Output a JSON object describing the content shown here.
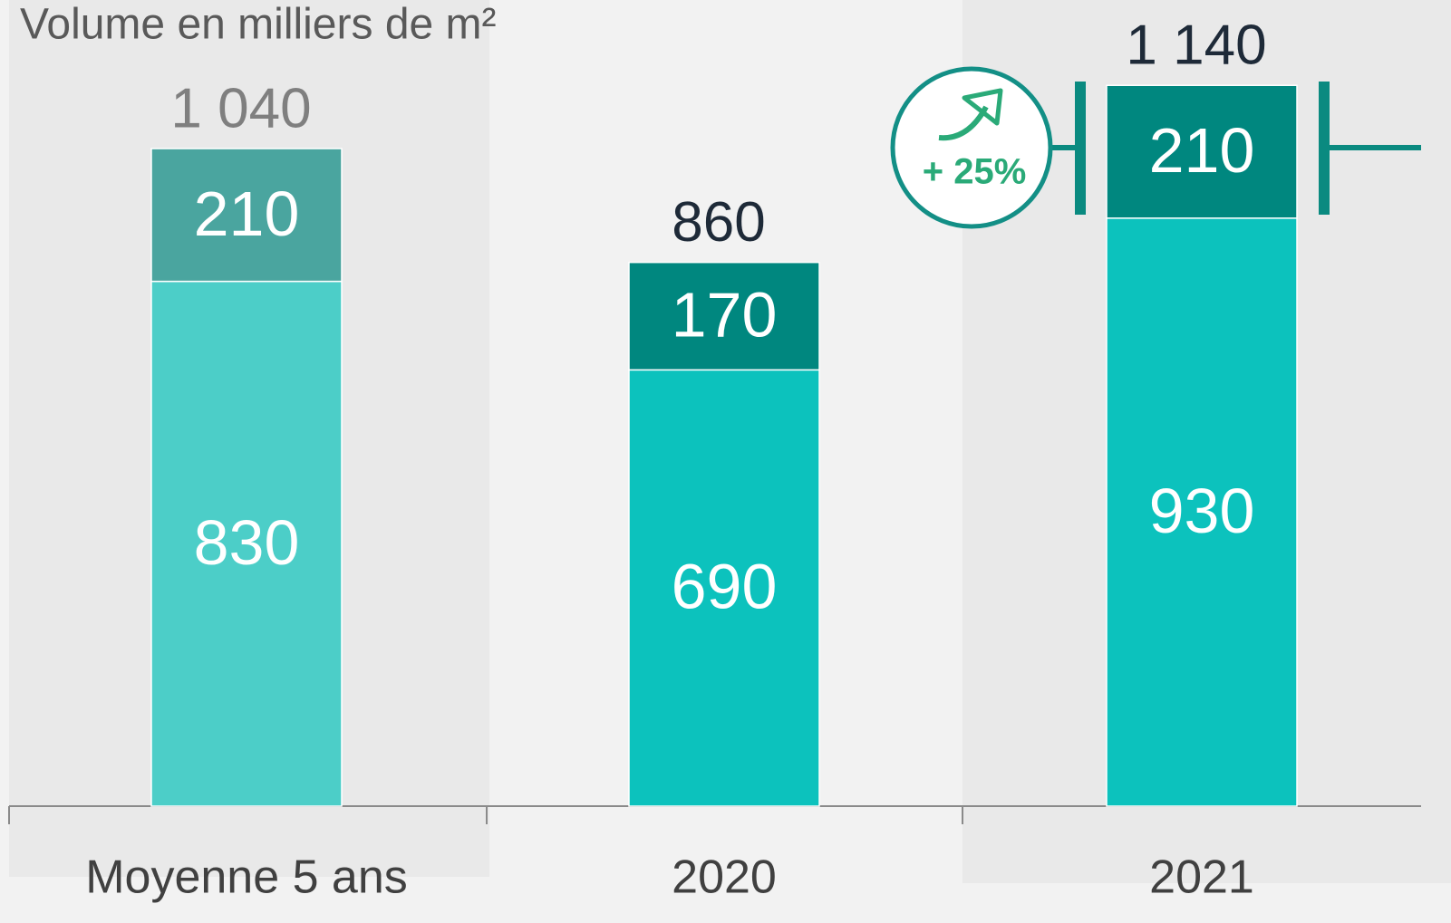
{
  "chart_data": {
    "type": "stacked_bar",
    "title": "Volume en milliers de m²",
    "categories": [
      "Moyenne 5 ans",
      "2020",
      "2021"
    ],
    "series": [
      {
        "values": [
          830,
          690,
          930
        ],
        "colors": [
          "#4ccec8",
          "#0cc2bd",
          "#0cc2bd"
        ]
      },
      {
        "values": [
          210,
          170,
          210
        ],
        "colors": [
          "#4aa59f",
          "#00877f",
          "#00877f"
        ]
      }
    ],
    "totals": [
      1040,
      860,
      1140
    ],
    "total_labels": [
      "1 040",
      "860",
      "1 140"
    ],
    "total_colors": [
      "#7f7f7f",
      "#1e2a38",
      "#1e2a38"
    ],
    "annotation": "+ 25%",
    "ylim": [
      0,
      1275
    ]
  }
}
